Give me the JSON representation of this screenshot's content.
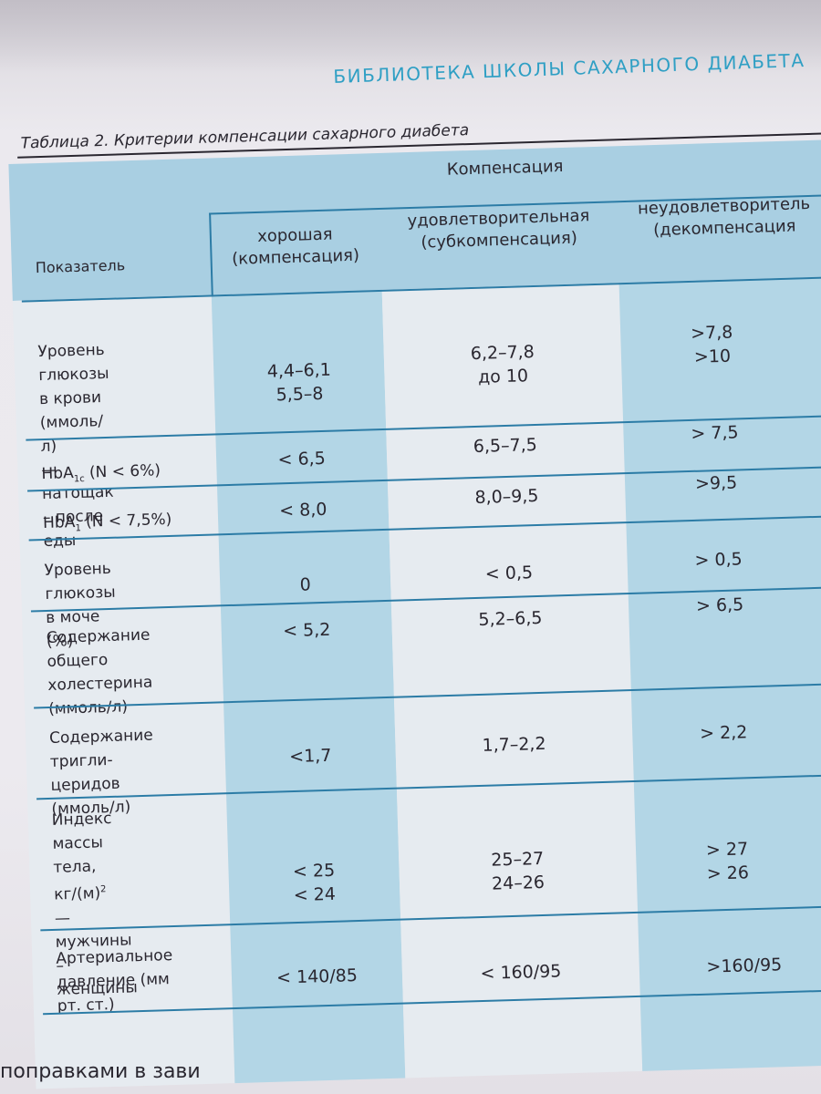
{
  "running_head": "БИБЛИОТЕКА  ШКОЛЫ САХАРНОГО ДИАБЕТА",
  "table": {
    "caption": "Таблица 2. Критерии компенсации сахарного диабета",
    "header": {
      "indicator_label": "Показатель",
      "group_label": "Компенсация",
      "col_good": "хорошая\n(компенсация)",
      "col_sat": "удовлетворительная\n(субкомпенсация)",
      "col_unsat": "неудовлетворитель\n(декомпенсация"
    },
    "rows": [
      {
        "indicator": "Уровень глюкозы\nв крови (ммоль/л)\n— натощак\n– после еды",
        "good": "4,4–6,1\n5,5–8",
        "sat": "6,2–7,8\nдо 10",
        "unsat": ">7,8\n>10"
      },
      {
        "indicator_main": "HbA",
        "indicator_sub": "1c",
        "indicator_rest": " (N < 6%)",
        "good": "< 6,5",
        "sat": "6,5–7,5",
        "unsat": "> 7,5"
      },
      {
        "indicator_main": "HbA",
        "indicator_sub": "1",
        "indicator_rest": "  (N < 7,5%)",
        "good": "< 8,0",
        "sat": "8,0–9,5",
        "unsat": ">9,5"
      },
      {
        "indicator": "Уровень глюкозы\nв моче (%)",
        "good": "0",
        "sat": "< 0,5",
        "unsat": "> 0,5"
      },
      {
        "indicator": "Содержание\nобщего холестерина\n(ммоль/л)",
        "good": "< 5,2",
        "sat": "5,2–6,5",
        "unsat": "> 6,5"
      },
      {
        "indicator": "Содержание тригли-\nцеридов (ммоль/л)",
        "good": "<1,7",
        "sat": "1,7–2,2",
        "unsat": "> 2,2"
      },
      {
        "indicator_main": "Индекс массы тела,\nкг/(м)",
        "indicator_sup": "2",
        "indicator_rest": "\n— мужчины\n– женщины",
        "good": "< 25\n< 24",
        "sat": "25–27\n24–26",
        "unsat": "> 27\n> 26"
      },
      {
        "indicator": "Артериальное\nдавление (мм рт. ст.)",
        "good": "< 140/85",
        "sat": "< 160/95",
        "unsat": ">160/95"
      }
    ]
  },
  "footer_text": "поправками  в  зави"
}
